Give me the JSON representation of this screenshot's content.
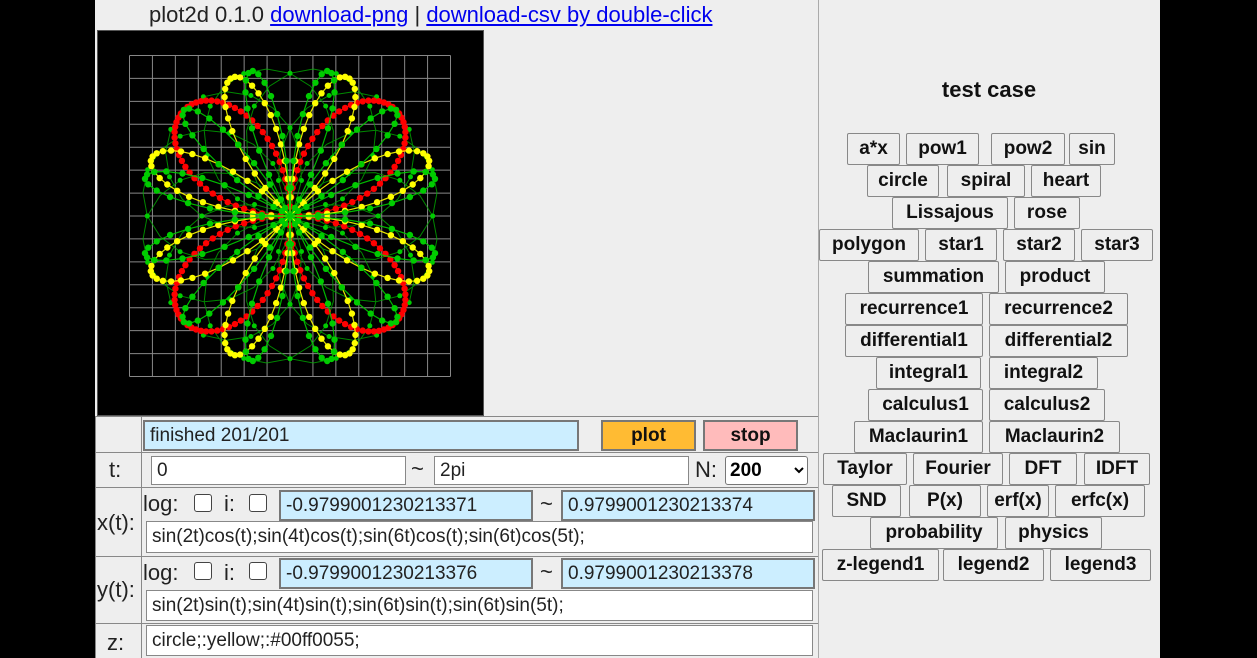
{
  "header": {
    "version": "plot2d 0.1.0",
    "download_png": "download-png",
    "separator": "|",
    "download_csv": "download-csv by double-click"
  },
  "canvas": {
    "background": "#000000",
    "grid_color": "#888888",
    "series_colors": [
      "#ff0000",
      "#00cc00",
      "#ffff00"
    ]
  },
  "status": {
    "text": "finished 201/201"
  },
  "controls": {
    "plot_label": "plot",
    "plot_color": "#ffbb33",
    "stop_label": "stop",
    "stop_color": "#ffbbbb"
  },
  "t_row": {
    "label": "t:",
    "min": "0",
    "tilde": "~",
    "max": "2pi",
    "n_label": "N:",
    "n_value": "200"
  },
  "x_row": {
    "label": "x(t):",
    "log_label": "log:",
    "i_label": "i:",
    "min": "-0.9799001230213371",
    "tilde": "~",
    "max": "0.9799001230213374",
    "expr": "sin(2t)cos(t);sin(4t)cos(t);sin(6t)cos(t);sin(6t)cos(5t);"
  },
  "y_row": {
    "label": "y(t):",
    "log_label": "log:",
    "i_label": "i:",
    "min": "-0.9799001230213376",
    "tilde": "~",
    "max": "0.9799001230213378",
    "expr": "sin(2t)sin(t);sin(4t)sin(t);sin(6t)sin(t);sin(6t)sin(5t);"
  },
  "z_row": {
    "label": "z:",
    "expr": "circle;:yellow;:#00ff0055;"
  },
  "test_case": {
    "title": "test case",
    "buttons": [
      "a*x",
      "pow1",
      "pow2",
      "sin",
      "circle",
      "spiral",
      "heart",
      "Lissajous",
      "rose",
      "polygon",
      "star1",
      "star2",
      "star3",
      "summation",
      "product",
      "recurrence1",
      "recurrence2",
      "differential1",
      "differential2",
      "integral1",
      "integral2",
      "calculus1",
      "calculus2",
      "Maclaurin1",
      "Maclaurin2",
      "Taylor",
      "Fourier",
      "DFT",
      "IDFT",
      "SND",
      "P(x)",
      "erf(x)",
      "erfc(x)",
      "probability",
      "physics",
      "z-legend1",
      "legend2",
      "legend3"
    ]
  }
}
